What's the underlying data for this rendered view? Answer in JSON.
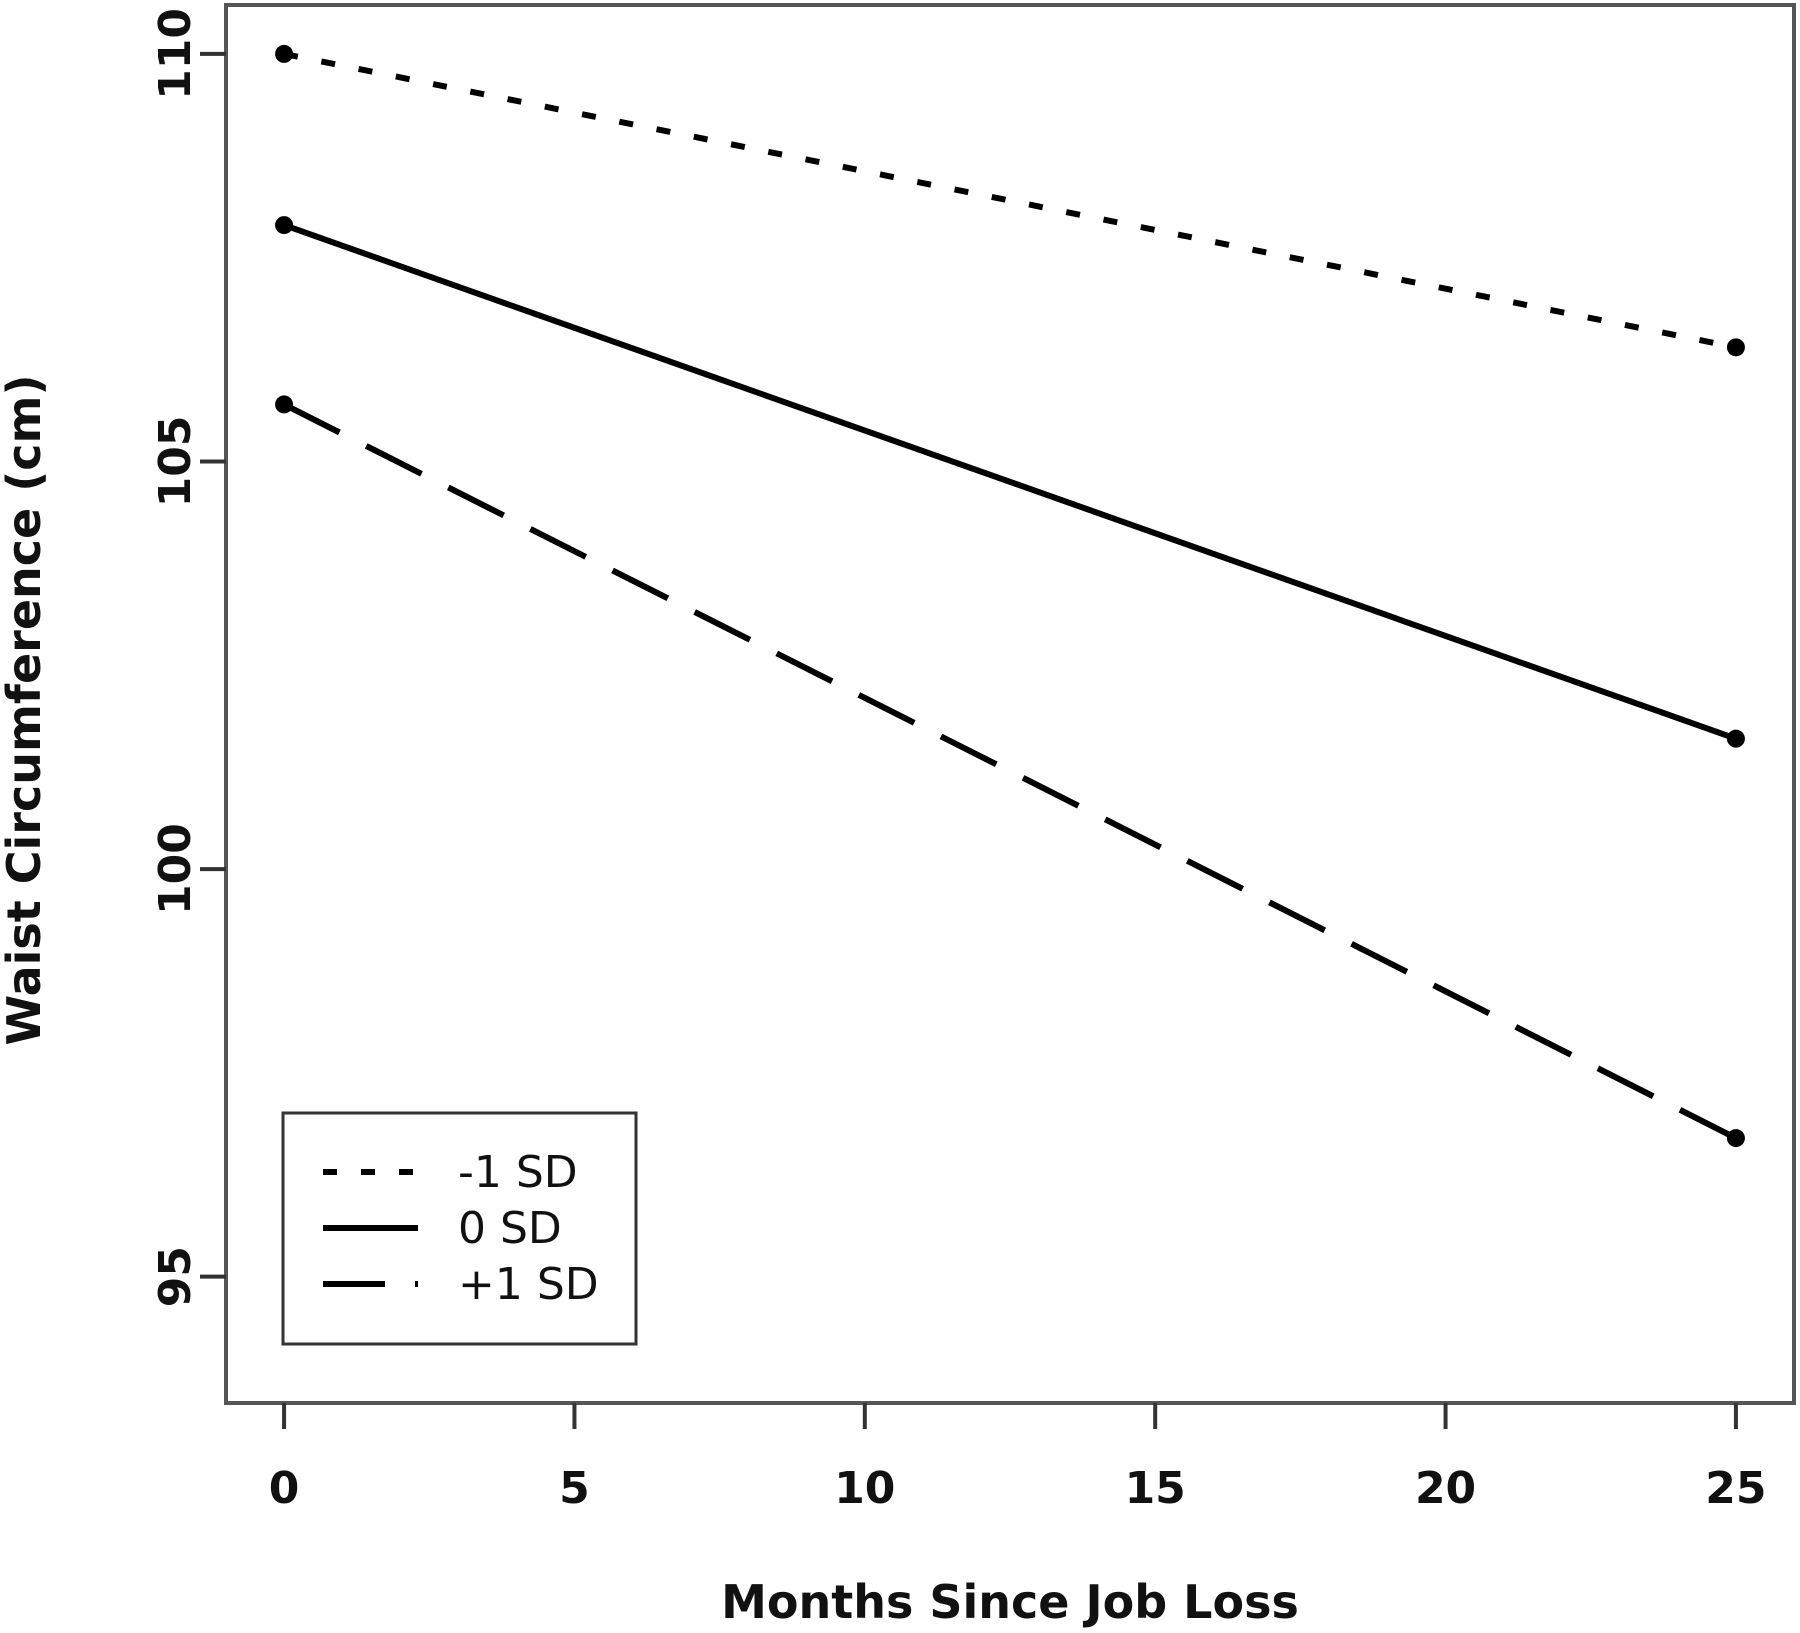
{
  "chart_data": {
    "type": "line",
    "title": "",
    "xlabel": "Months Since Job Loss",
    "ylabel": "Waist Circumference (cm)",
    "xlim": [
      -1,
      26
    ],
    "ylim": [
      93.45,
      110.6
    ],
    "x_ticks": [
      0,
      5,
      10,
      15,
      20,
      25
    ],
    "x_tick_labels": [
      "0",
      "5",
      "10",
      "15",
      "20",
      "25"
    ],
    "y_ticks": [
      95,
      100,
      105,
      110
    ],
    "y_tick_labels": [
      "95",
      "100",
      "105",
      "110"
    ],
    "grid": false,
    "legend_position": "bottom-left",
    "series": [
      {
        "name": "-1 SD",
        "line_style": "dotted",
        "x": [
          0,
          25
        ],
        "y": [
          110.0,
          106.4
        ]
      },
      {
        "name": "0 SD",
        "line_style": "solid",
        "x": [
          0,
          25
        ],
        "y": [
          107.9,
          101.6
        ]
      },
      {
        "name": "+1 SD",
        "line_style": "dashed",
        "x": [
          0,
          25
        ],
        "y": [
          105.7,
          96.7
        ]
      }
    ],
    "colors": {
      "line": "#000000",
      "frame": "#555555"
    }
  }
}
